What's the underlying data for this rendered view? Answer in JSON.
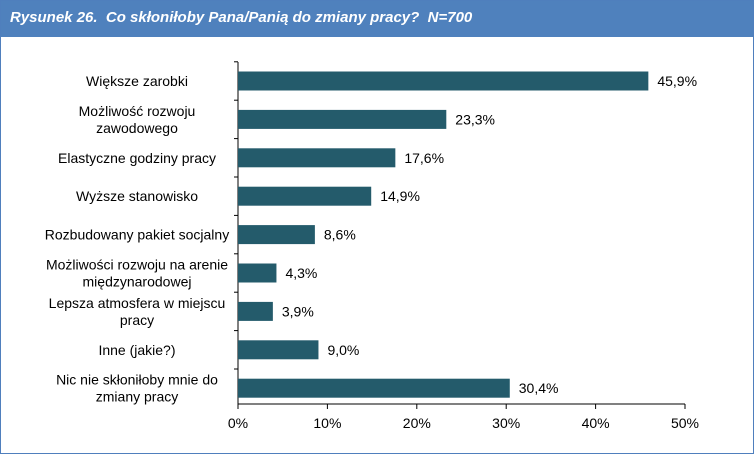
{
  "title": "Rysunek 26.  Co skłoniłoby Pana/Panią do zmiany pracy?  N=700",
  "chart_data": {
    "type": "bar",
    "orientation": "horizontal",
    "categories": [
      [
        "Większe zarobki"
      ],
      [
        "Możliwość rozwoju",
        "zawodowego"
      ],
      [
        "Elastyczne godziny pracy"
      ],
      [
        "Wyższe stanowisko"
      ],
      [
        "Rozbudowany pakiet socjalny"
      ],
      [
        "Możliwości rozwoju na arenie",
        "międzynarodowej"
      ],
      [
        "Lepsza atmosfera w miejscu",
        "pracy"
      ],
      [
        "Inne (jakie?)"
      ],
      [
        "Nic nie skłoniłoby mnie do",
        "zmiany pracy"
      ]
    ],
    "values": [
      45.9,
      23.3,
      17.6,
      14.9,
      8.6,
      4.3,
      3.9,
      9.0,
      30.4
    ],
    "value_labels": [
      "45,9%",
      "23,3%",
      "17,6%",
      "14,9%",
      "8,6%",
      "4,3%",
      "3,9%",
      "9,0%",
      "30,4%"
    ],
    "xlim": [
      0,
      50
    ],
    "xticks": [
      0,
      10,
      20,
      30,
      40,
      50
    ],
    "xtick_labels": [
      "0%",
      "10%",
      "20%",
      "30%",
      "40%",
      "50%"
    ],
    "bar_color": "#245b6b",
    "grid": false,
    "legend": "none"
  }
}
